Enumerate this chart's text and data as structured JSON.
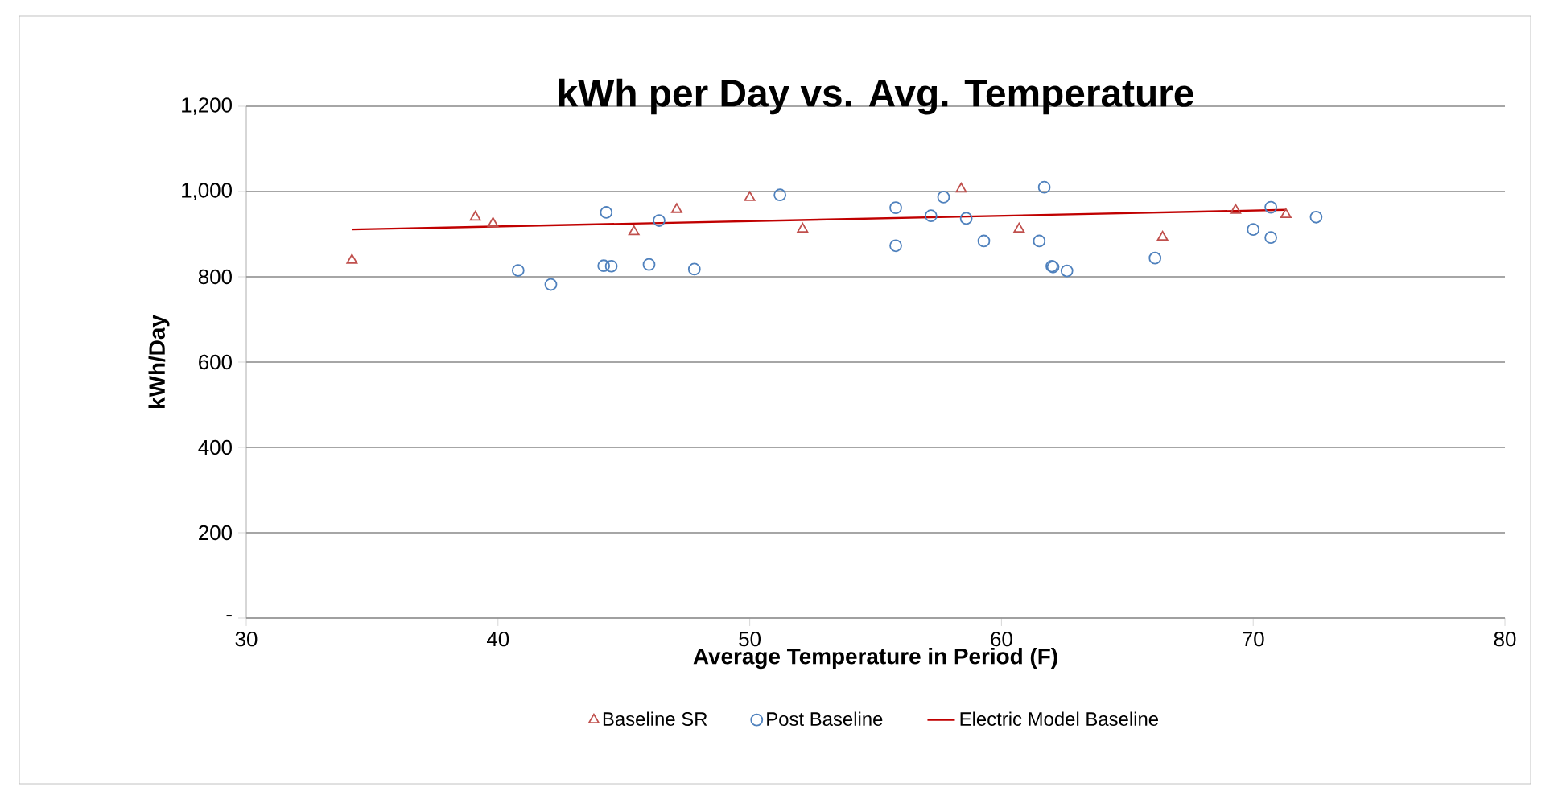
{
  "chart_data": {
    "type": "scatter",
    "title": "kWh per Day vs. Avg. Temperature",
    "xlabel": "Average Temperature in Period (F)",
    "ylabel": "kWh/Day",
    "xlim": [
      30,
      80
    ],
    "xticks": [
      30,
      40,
      50,
      60,
      70,
      80
    ],
    "ylim": [
      0,
      1200
    ],
    "yticks": [
      {
        "value": 0,
        "label": "-"
      },
      200,
      400,
      600,
      800,
      {
        "value": 1000,
        "label": "1,000"
      },
      {
        "value": 1200,
        "label": "1,200"
      }
    ],
    "grid": "y",
    "legend": "bottom",
    "series": [
      {
        "name": "Baseline SR",
        "marker": "triangle",
        "color": "#c0504d",
        "x": [
          34.2,
          39.1,
          39.8,
          45.4,
          47.1,
          50.0,
          52.1,
          58.4,
          60.7,
          66.4,
          69.3,
          71.3
        ],
        "values": [
          839,
          940,
          925,
          906,
          958,
          986,
          912,
          1006,
          912,
          893,
          956,
          946
        ]
      },
      {
        "name": "Post Baseline",
        "marker": "circle",
        "color": "#4f81bd",
        "x": [
          40.8,
          42.1,
          44.3,
          44.2,
          44.5,
          46.0,
          46.4,
          47.8,
          51.2,
          55.8,
          55.8,
          57.2,
          57.7,
          58.6,
          59.3,
          61.7,
          61.5,
          62.0,
          62.05,
          62.6,
          66.1,
          70.0,
          70.7,
          70.7,
          72.5
        ],
        "values": [
          815,
          782,
          951,
          826,
          825,
          829,
          932,
          818,
          992,
          962,
          873,
          943,
          987,
          937,
          884,
          1010,
          884,
          825,
          823,
          814,
          844,
          911,
          963,
          892,
          940
        ]
      },
      {
        "name": "Electric Model Baseline",
        "type": "line",
        "marker": "none",
        "color": "#c00000",
        "x": [
          34.2,
          71.3
        ],
        "values": [
          911,
          957
        ]
      }
    ]
  }
}
